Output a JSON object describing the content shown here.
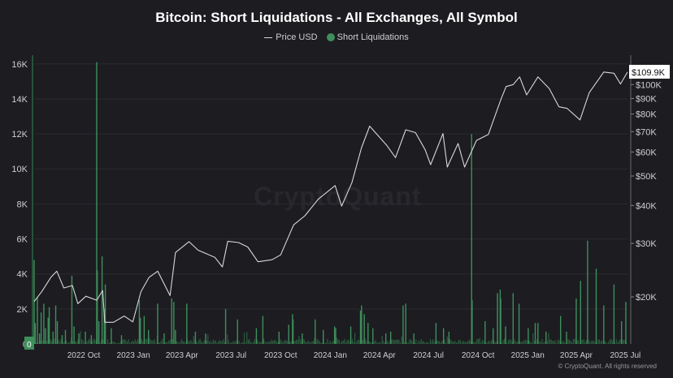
{
  "chart_data": {
    "type": "bar+line",
    "title": "Bitcoin: Short Liquidations - All Exchanges, All Symbol",
    "legend_placement": "top-center",
    "grid": true,
    "colors": {
      "price_line": "#d8d8d8",
      "liquidations": "#3f8f5c",
      "background": "#1c1c21"
    },
    "left_axis": {
      "ticks": [
        "0",
        "2K",
        "4K",
        "6K",
        "8K",
        "10K",
        "12K",
        "14K",
        "16K"
      ],
      "values": [
        0,
        2000,
        4000,
        6000,
        8000,
        10000,
        12000,
        14000,
        16000
      ],
      "ylim": [
        0,
        16500
      ]
    },
    "right_axis": {
      "scale": "log",
      "ticks": [
        "$20K",
        "$30K",
        "$40K",
        "$50K",
        "$60K",
        "$70K",
        "$80K",
        "$90K",
        "$100K"
      ],
      "values": [
        20000,
        30000,
        40000,
        50000,
        60000,
        70000,
        80000,
        90000,
        100000
      ],
      "current_label": "$109.9K",
      "current_value": 109900,
      "left_current_label": "0"
    },
    "x_axis": {
      "ticks": [
        "2022 Oct",
        "2023 Jan",
        "2023 Apr",
        "2023 Jul",
        "2023 Oct",
        "2024 Jan",
        "2024 Apr",
        "2024 Jul",
        "2024 Oct",
        "2025 Jan",
        "2025 Apr",
        "2025 Jul"
      ],
      "tick_dates": [
        "2022-10-01",
        "2023-01-01",
        "2023-04-01",
        "2023-07-01",
        "2023-10-01",
        "2024-01-01",
        "2024-04-01",
        "2024-07-01",
        "2024-10-01",
        "2025-01-01",
        "2025-04-01",
        "2025-07-01"
      ],
      "range": [
        "2022-07-01",
        "2025-07-05"
      ]
    },
    "series": [
      {
        "name": "Price USD",
        "type": "line",
        "points": [
          [
            "2022-07-01",
            19300
          ],
          [
            "2022-07-15",
            20800
          ],
          [
            "2022-08-01",
            23200
          ],
          [
            "2022-08-12",
            24300
          ],
          [
            "2022-08-25",
            21400
          ],
          [
            "2022-09-10",
            21800
          ],
          [
            "2022-09-20",
            19000
          ],
          [
            "2022-10-05",
            20100
          ],
          [
            "2022-10-25",
            19500
          ],
          [
            "2022-11-05",
            21000
          ],
          [
            "2022-11-09",
            16500
          ],
          [
            "2022-11-25",
            16500
          ],
          [
            "2022-12-15",
            17300
          ],
          [
            "2022-12-31",
            16550
          ],
          [
            "2023-01-15",
            20800
          ],
          [
            "2023-01-30",
            23200
          ],
          [
            "2023-02-15",
            24300
          ],
          [
            "2023-03-10",
            20200
          ],
          [
            "2023-03-20",
            28000
          ],
          [
            "2023-04-14",
            30400
          ],
          [
            "2023-05-01",
            28500
          ],
          [
            "2023-06-01",
            27000
          ],
          [
            "2023-06-15",
            25100
          ],
          [
            "2023-06-25",
            30500
          ],
          [
            "2023-07-15",
            30200
          ],
          [
            "2023-08-01",
            29200
          ],
          [
            "2023-08-20",
            26100
          ],
          [
            "2023-09-15",
            26500
          ],
          [
            "2023-10-01",
            27500
          ],
          [
            "2023-10-25",
            34500
          ],
          [
            "2023-11-15",
            37000
          ],
          [
            "2023-12-10",
            42000
          ],
          [
            "2024-01-10",
            46500
          ],
          [
            "2024-01-22",
            39800
          ],
          [
            "2024-02-10",
            47500
          ],
          [
            "2024-02-28",
            62000
          ],
          [
            "2024-03-14",
            73000
          ],
          [
            "2024-04-15",
            63000
          ],
          [
            "2024-05-01",
            57500
          ],
          [
            "2024-05-20",
            71000
          ],
          [
            "2024-06-07",
            69500
          ],
          [
            "2024-06-25",
            61000
          ],
          [
            "2024-07-05",
            54500
          ],
          [
            "2024-07-28",
            69000
          ],
          [
            "2024-08-05",
            53500
          ],
          [
            "2024-08-25",
            64000
          ],
          [
            "2024-09-06",
            53500
          ],
          [
            "2024-09-28",
            65500
          ],
          [
            "2024-10-20",
            68500
          ],
          [
            "2024-11-13",
            90000
          ],
          [
            "2024-11-22",
            98500
          ],
          [
            "2024-12-05",
            100000
          ],
          [
            "2024-12-17",
            106000
          ],
          [
            "2024-12-30",
            92500
          ],
          [
            "2025-01-20",
            106000
          ],
          [
            "2025-02-10",
            97000
          ],
          [
            "2025-02-28",
            84500
          ],
          [
            "2025-03-15",
            83500
          ],
          [
            "2025-04-08",
            76500
          ],
          [
            "2025-04-25",
            94000
          ],
          [
            "2025-05-22",
            110000
          ],
          [
            "2025-06-10",
            109000
          ],
          [
            "2025-06-22",
            100500
          ],
          [
            "2025-07-05",
            109900
          ]
        ]
      },
      {
        "name": "Short Liquidations",
        "type": "bar",
        "points": [
          [
            "2022-07-01",
            4800
          ],
          [
            "2022-07-03",
            1200
          ],
          [
            "2022-07-07",
            2700
          ],
          [
            "2022-07-11",
            600
          ],
          [
            "2022-07-14",
            1800
          ],
          [
            "2022-07-19",
            2300
          ],
          [
            "2022-07-22",
            900
          ],
          [
            "2022-07-27",
            1500
          ],
          [
            "2022-07-29",
            2100
          ],
          [
            "2022-08-05",
            700
          ],
          [
            "2022-08-10",
            2200
          ],
          [
            "2022-08-13",
            1300
          ],
          [
            "2022-08-22",
            500
          ],
          [
            "2022-08-28",
            800
          ],
          [
            "2022-09-09",
            3900
          ],
          [
            "2022-09-13",
            1000
          ],
          [
            "2022-09-22",
            600
          ],
          [
            "2022-10-04",
            700
          ],
          [
            "2022-10-15",
            500
          ],
          [
            "2022-10-25",
            16100
          ],
          [
            "2022-10-26",
            4200
          ],
          [
            "2022-10-29",
            1300
          ],
          [
            "2022-11-04",
            5000
          ],
          [
            "2022-11-08",
            2000
          ],
          [
            "2022-11-10",
            3400
          ],
          [
            "2022-11-21",
            900
          ],
          [
            "2022-12-10",
            500
          ],
          [
            "2023-01-12",
            2500
          ],
          [
            "2023-01-14",
            1500
          ],
          [
            "2023-01-21",
            1600
          ],
          [
            "2023-01-29",
            800
          ],
          [
            "2023-02-15",
            2300
          ],
          [
            "2023-02-27",
            600
          ],
          [
            "2023-03-13",
            2600
          ],
          [
            "2023-03-17",
            2400
          ],
          [
            "2023-03-20",
            800
          ],
          [
            "2023-04-10",
            2300
          ],
          [
            "2023-04-26",
            700
          ],
          [
            "2023-05-15",
            600
          ],
          [
            "2023-06-21",
            2000
          ],
          [
            "2023-07-13",
            1400
          ],
          [
            "2023-08-17",
            900
          ],
          [
            "2023-08-29",
            1600
          ],
          [
            "2023-09-28",
            700
          ],
          [
            "2023-10-16",
            1100
          ],
          [
            "2023-10-23",
            1700
          ],
          [
            "2023-10-24",
            1400
          ],
          [
            "2023-11-10",
            600
          ],
          [
            "2023-12-04",
            1400
          ],
          [
            "2023-12-19",
            800
          ],
          [
            "2024-01-09",
            1000
          ],
          [
            "2024-01-11",
            900
          ],
          [
            "2024-02-08",
            1000
          ],
          [
            "2024-02-26",
            1900
          ],
          [
            "2024-02-28",
            2200
          ],
          [
            "2024-03-04",
            1700
          ],
          [
            "2024-03-11",
            1200
          ],
          [
            "2024-03-20",
            900
          ],
          [
            "2024-04-13",
            600
          ],
          [
            "2024-04-22",
            700
          ],
          [
            "2024-05-15",
            2200
          ],
          [
            "2024-05-20",
            2300
          ],
          [
            "2024-06-04",
            600
          ],
          [
            "2024-07-15",
            1200
          ],
          [
            "2024-07-29",
            900
          ],
          [
            "2024-08-08",
            700
          ],
          [
            "2024-09-19",
            12000
          ],
          [
            "2024-09-20",
            2500
          ],
          [
            "2024-10-14",
            1300
          ],
          [
            "2024-10-29",
            900
          ],
          [
            "2024-11-06",
            2900
          ],
          [
            "2024-11-11",
            3100
          ],
          [
            "2024-11-12",
            2600
          ],
          [
            "2024-11-21",
            1000
          ],
          [
            "2024-12-05",
            2900
          ],
          [
            "2024-12-16",
            2300
          ],
          [
            "2025-01-02",
            900
          ],
          [
            "2025-01-15",
            1200
          ],
          [
            "2025-01-20",
            1200
          ],
          [
            "2025-02-04",
            700
          ],
          [
            "2025-03-03",
            1600
          ],
          [
            "2025-03-14",
            700
          ],
          [
            "2025-04-01",
            2600
          ],
          [
            "2025-04-09",
            3600
          ],
          [
            "2025-04-22",
            5900
          ],
          [
            "2025-05-08",
            4300
          ],
          [
            "2025-05-22",
            2200
          ],
          [
            "2025-06-10",
            3400
          ],
          [
            "2025-06-24",
            1300
          ],
          [
            "2025-07-02",
            2400
          ]
        ]
      }
    ]
  },
  "copyright": "© CryptoQuant. All rights reserved",
  "watermark": "CryptoQuant"
}
